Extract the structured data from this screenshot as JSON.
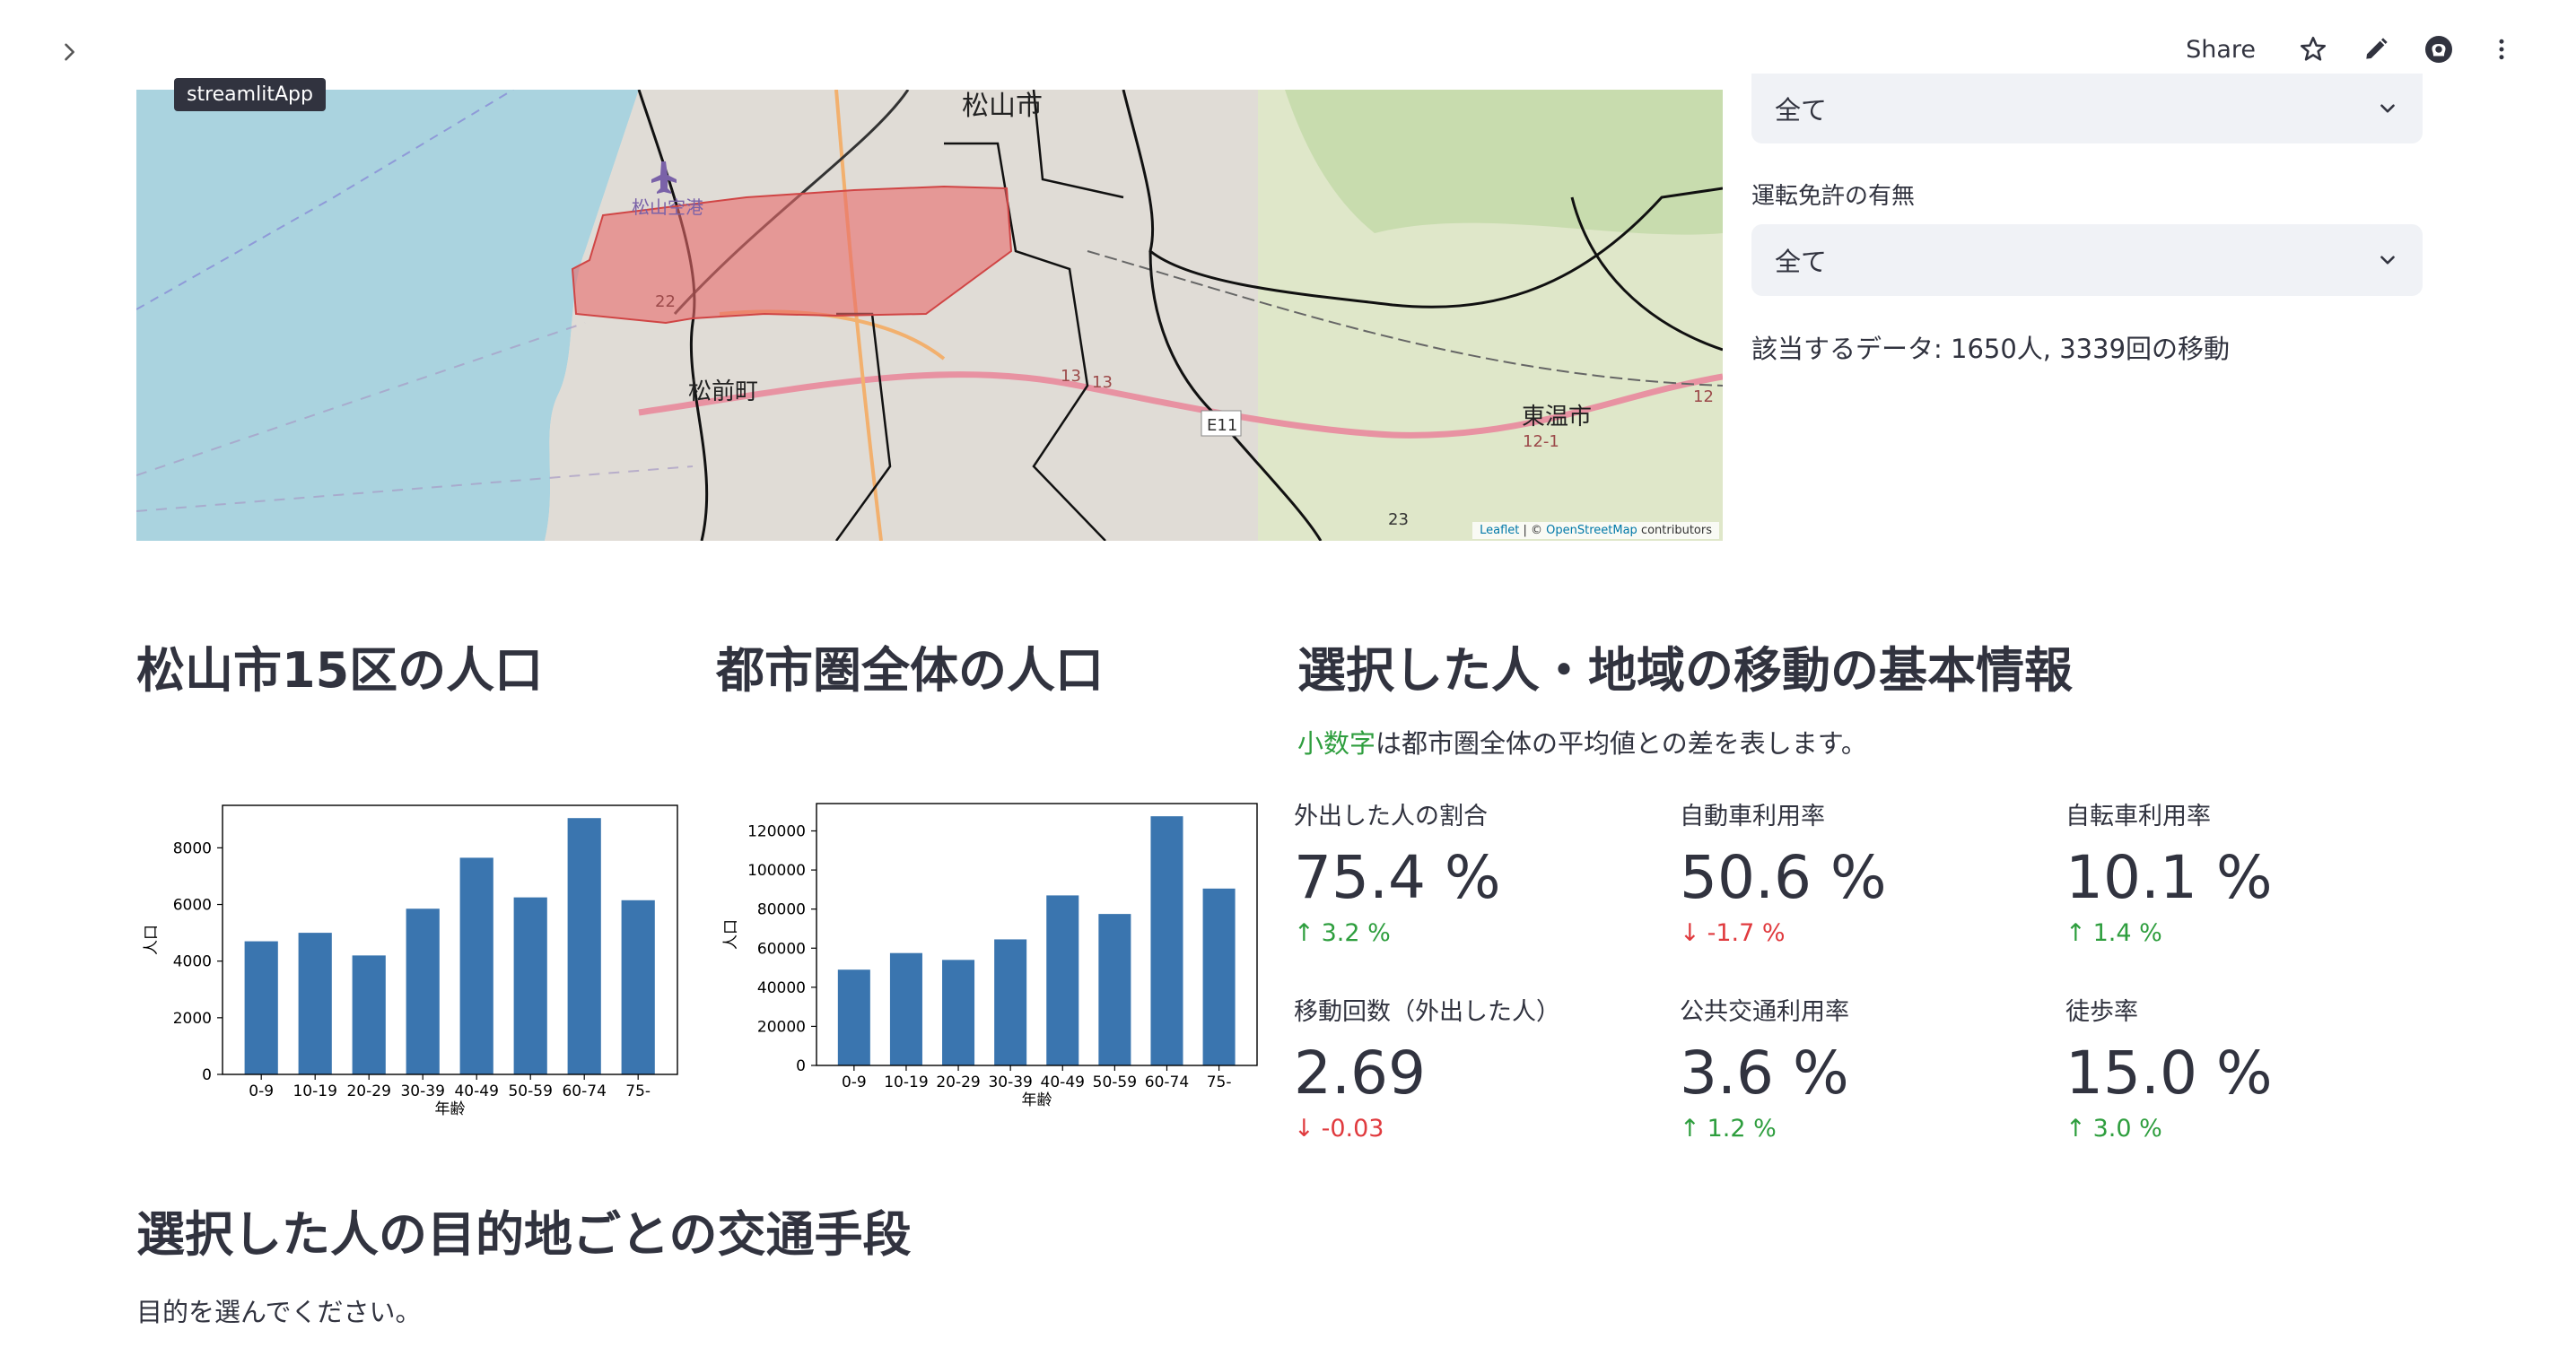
{
  "header": {
    "share_label": "Share",
    "icons": [
      "chevron-right-icon",
      "star-icon",
      "pencil-icon",
      "github-icon",
      "more-vert-icon"
    ],
    "tooltip": "streamlitApp"
  },
  "map": {
    "labels": {
      "matsuyama": "松山市",
      "airport": "松山空港",
      "masaki": "松前町",
      "toon": "東温市",
      "e11": "E11",
      "r22": "22",
      "r13a": "13",
      "r13b": "13",
      "r12": "12",
      "r121": "12-1",
      "r23": "23"
    },
    "attribution": {
      "leaflet": "Leaflet",
      "sep": " | © ",
      "osm": "OpenStreetMap",
      "rest": " contributors"
    }
  },
  "filters": {
    "select1_value": "全て",
    "license_label": "運転免許の有無",
    "select2_value": "全て",
    "summary": "該当するデータ: 1650人, 3339回の移動"
  },
  "sections": {
    "pop15_title": "松山市15区の人口",
    "popall_title": "都市圏全体の人口",
    "basic_title": "選択した人・地域の移動の基本情報",
    "caption_green": "小数字",
    "caption_rest": "は都市圏全体の平均値との差を表します。",
    "mode_title": "選択した人の目的地ごとの交通手段",
    "mode_caption": "目的を選んでください。"
  },
  "chart_data": [
    {
      "type": "bar",
      "categories": [
        "0-9",
        "10-19",
        "20-29",
        "30-39",
        "40-49",
        "50-59",
        "60-74",
        "75-"
      ],
      "values": [
        4700,
        5000,
        4200,
        5850,
        7650,
        6250,
        9050,
        6150
      ],
      "xlabel": "年齢",
      "ylabel": "人口",
      "ylim": [
        0,
        9500
      ],
      "yticks": [
        0,
        2000,
        4000,
        6000,
        8000
      ],
      "color": "#3a75af"
    },
    {
      "type": "bar",
      "categories": [
        "0-9",
        "10-19",
        "20-29",
        "30-39",
        "40-49",
        "50-59",
        "60-74",
        "75-"
      ],
      "values": [
        49000,
        57500,
        54000,
        64500,
        87000,
        77500,
        127500,
        90500
      ],
      "xlabel": "年齢",
      "ylabel": "人口",
      "ylim": [
        0,
        134000
      ],
      "yticks": [
        0,
        20000,
        40000,
        60000,
        80000,
        100000,
        120000
      ],
      "color": "#3a75af"
    }
  ],
  "metrics": [
    {
      "label": "外出した人の割合",
      "value": "75.4 %",
      "delta": "3.2 %",
      "dir": "up"
    },
    {
      "label": "自動車利用率",
      "value": "50.6 %",
      "delta": "-1.7 %",
      "dir": "down"
    },
    {
      "label": "自転車利用率",
      "value": "10.1 %",
      "delta": "1.4 %",
      "dir": "up"
    },
    {
      "label": "移動回数（外出した人）",
      "value": "2.69",
      "delta": "-0.03",
      "dir": "down"
    },
    {
      "label": "公共交通利用率",
      "value": "3.6 %",
      "delta": "1.2 %",
      "dir": "up"
    },
    {
      "label": "徒歩率",
      "value": "15.0 %",
      "delta": "3.0 %",
      "dir": "up"
    }
  ],
  "colors": {
    "up": "#2e9e3e",
    "down": "#e03a3e",
    "bar": "#3a75af",
    "region_fill": "#e86a6a"
  }
}
